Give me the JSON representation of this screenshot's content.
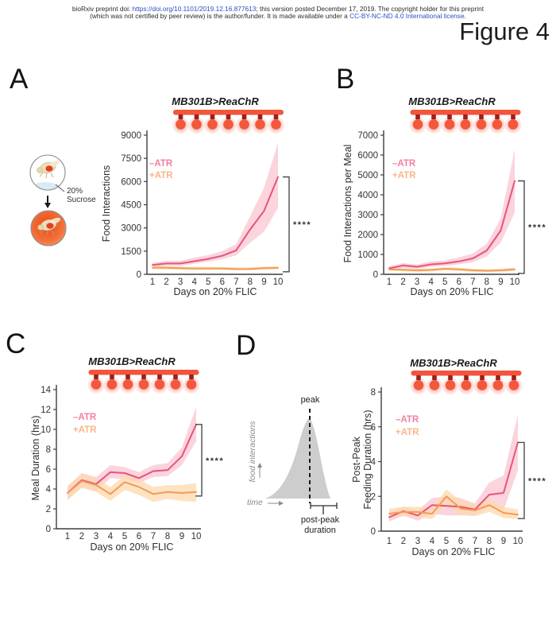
{
  "header": {
    "line1_pre": "bioRxiv preprint doi: ",
    "line1_link": "https://doi.org/10.1101/2019.12.16.877613",
    "line1_post": "; this version posted December 17, 2019. The copyright holder for this preprint",
    "line2_pre": "(which was not certified by peer review) is the author/funder. It is made available under a ",
    "line2_link": "CC-BY-NC-ND 4.0 International license",
    "line2_post": ".",
    "figure_label": "Figure 4"
  },
  "panels": [
    {
      "letter": "A",
      "title": "MB301B>ReaChR",
      "legend": {
        "neg": "–ATR",
        "pos": "+ATR"
      },
      "ylabel": "Food Interactions",
      "xlabel": "Days on 20% FLIC",
      "significance": "****"
    },
    {
      "letter": "B",
      "title": "MB301B>ReaChR",
      "legend": {
        "neg": "–ATR",
        "pos": "+ATR"
      },
      "ylabel": "Food Interactions per Meal",
      "xlabel": "Days on 20% FLIC",
      "significance": "****"
    },
    {
      "letter": "C",
      "title": "MB301B>ReaChR",
      "legend": {
        "neg": "–ATR",
        "pos": "+ATR"
      },
      "ylabel": "Meal Duration (hrs)",
      "xlabel": "Days on 20% FLIC",
      "significance": "****"
    },
    {
      "letter": "D",
      "title": "MB301B>ReaChR",
      "legend": {
        "neg": "–ATR",
        "pos": "+ATR"
      },
      "ylabel_line1": "Post-Peak",
      "ylabel_line2": "Feeding Duration (hrs)",
      "xlabel": "Days on 20% FLIC",
      "significance": "****"
    }
  ],
  "sucrose_inset": {
    "label_line1": "20%",
    "label_line2": "Sucrose"
  },
  "peak_inset": {
    "peak_label": "peak",
    "ylabel": "food interactions",
    "xlabel": "time",
    "bracket_label_line1": "post-peak",
    "bracket_label_line2": "duration"
  },
  "colors": {
    "pink_line": "#e9537b",
    "pink_band": "#f9c6d1",
    "pink_legend": "#f180a0",
    "orange_line": "#f39a57",
    "orange_band": "#fcd9ad",
    "orange_legend": "#f9b68b",
    "bulb_red": "#f2553c",
    "connector_red": "#9b2016",
    "axis": "#3d3d3d",
    "link_blue": "#2d50c0",
    "gray_curve": "#cdcdcd"
  },
  "chart_data": [
    {
      "id": "A",
      "type": "line",
      "title": "MB301B>ReaChR",
      "xlabel": "Days on 20% FLIC",
      "ylabel": "Food Interactions",
      "x": [
        1,
        2,
        3,
        4,
        5,
        6,
        7,
        8,
        9,
        10
      ],
      "ylim": [
        0,
        9000
      ],
      "yticks": [
        0,
        1500,
        3000,
        4500,
        6000,
        7500,
        9000
      ],
      "grid": false,
      "legend_position": "upper-left",
      "significance": "****",
      "series": [
        {
          "name": "–ATR",
          "color": "#e9537b",
          "band_color": "#f9c6d1",
          "values": [
            600,
            700,
            700,
            850,
            1000,
            1200,
            1550,
            2900,
            4100,
            6300
          ],
          "lower": [
            460,
            560,
            560,
            680,
            820,
            980,
            1230,
            2050,
            2750,
            4300
          ],
          "upper": [
            740,
            880,
            880,
            1080,
            1250,
            1500,
            1950,
            3750,
            5600,
            8500
          ]
        },
        {
          "name": "+ATR",
          "color": "#f39a57",
          "band_color": "#fcd9ad",
          "values": [
            430,
            420,
            400,
            380,
            380,
            380,
            340,
            350,
            400,
            420
          ],
          "lower": [
            330,
            320,
            300,
            280,
            280,
            280,
            250,
            260,
            300,
            320
          ],
          "upper": [
            530,
            520,
            500,
            480,
            480,
            480,
            440,
            450,
            500,
            520
          ]
        }
      ]
    },
    {
      "id": "B",
      "type": "line",
      "title": "MB301B>ReaChR",
      "xlabel": "Days on 20% FLIC",
      "ylabel": "Food Interactions per Meal",
      "x": [
        1,
        2,
        3,
        4,
        5,
        6,
        7,
        8,
        9,
        10
      ],
      "ylim": [
        0,
        7000
      ],
      "yticks": [
        0,
        1000,
        2000,
        3000,
        4000,
        5000,
        6000,
        7000
      ],
      "grid": false,
      "legend_position": "upper-left",
      "significance": "****",
      "series": [
        {
          "name": "–ATR",
          "color": "#e9537b",
          "band_color": "#f9c6d1",
          "values": [
            300,
            450,
            380,
            500,
            550,
            650,
            800,
            1200,
            2200,
            4700
          ],
          "lower": [
            210,
            330,
            280,
            380,
            420,
            500,
            610,
            900,
            1600,
            3100
          ],
          "upper": [
            400,
            570,
            490,
            650,
            700,
            850,
            1050,
            1550,
            2800,
            6300
          ]
        },
        {
          "name": "+ATR",
          "color": "#f39a57",
          "band_color": "#fcd9ad",
          "values": [
            250,
            230,
            200,
            220,
            280,
            250,
            200,
            180,
            200,
            250
          ],
          "lower": [
            170,
            150,
            130,
            150,
            200,
            170,
            130,
            110,
            130,
            170
          ],
          "upper": [
            330,
            310,
            280,
            300,
            360,
            330,
            280,
            260,
            280,
            340
          ]
        }
      ]
    },
    {
      "id": "C",
      "type": "line",
      "title": "MB301B>ReaChR",
      "xlabel": "Days on 20% FLIC",
      "ylabel": "Meal Duration (hrs)",
      "x": [
        1,
        2,
        3,
        4,
        5,
        6,
        7,
        8,
        9,
        10
      ],
      "ylim": [
        0,
        14
      ],
      "yticks": [
        0,
        2,
        4,
        6,
        8,
        10,
        12,
        14
      ],
      "grid": false,
      "legend_position": "upper-left",
      "significance": "****",
      "series": [
        {
          "name": "–ATR",
          "color": "#e9537b",
          "band_color": "#f9c6d1",
          "values": [
            3.6,
            4.9,
            4.5,
            5.7,
            5.6,
            5.1,
            5.8,
            5.9,
            7.3,
            10.5
          ],
          "lower": [
            2.9,
            4.2,
            3.8,
            5.1,
            5.0,
            4.6,
            5.2,
            5.3,
            6.4,
            8.8
          ],
          "upper": [
            4.3,
            5.6,
            5.2,
            6.4,
            6.2,
            5.7,
            6.4,
            6.6,
            8.2,
            12.3
          ]
        },
        {
          "name": "+ATR",
          "color": "#f39a57",
          "band_color": "#fcd9ad",
          "values": [
            3.6,
            4.8,
            4.4,
            3.5,
            4.7,
            4.2,
            3.5,
            3.7,
            3.6,
            3.7
          ],
          "lower": [
            2.9,
            4.1,
            3.7,
            2.8,
            3.9,
            3.4,
            2.7,
            3.0,
            2.8,
            2.7
          ],
          "upper": [
            4.3,
            5.5,
            5.1,
            4.2,
            5.4,
            5.0,
            4.2,
            4.4,
            4.4,
            4.6
          ]
        }
      ]
    },
    {
      "id": "D",
      "type": "line",
      "title": "MB301B>ReaChR",
      "xlabel": "Days on 20% FLIC",
      "ylabel": "Post-Peak Feeding Duration (hrs)",
      "x": [
        1,
        2,
        3,
        4,
        5,
        6,
        7,
        8,
        9,
        10
      ],
      "ylim": [
        0,
        8
      ],
      "yticks": [
        0,
        2,
        4,
        6,
        8
      ],
      "grid": false,
      "legend_position": "upper-left",
      "significance": "****",
      "series": [
        {
          "name": "–ATR",
          "color": "#e9537b",
          "band_color": "#f9c6d1",
          "values": [
            0.8,
            1.15,
            0.9,
            1.5,
            1.45,
            1.4,
            1.25,
            2.1,
            2.2,
            5.1
          ],
          "lower": [
            0.55,
            0.9,
            0.6,
            1.0,
            0.9,
            0.9,
            0.9,
            1.4,
            1.2,
            3.5
          ],
          "upper": [
            1.1,
            1.4,
            1.2,
            1.9,
            2.0,
            1.9,
            1.6,
            2.8,
            3.2,
            6.7
          ]
        },
        {
          "name": "+ATR",
          "color": "#f39a57",
          "band_color": "#fcd9ad",
          "values": [
            1.0,
            1.1,
            1.1,
            1.0,
            2.0,
            1.3,
            1.2,
            1.5,
            1.05,
            0.95
          ],
          "lower": [
            0.75,
            0.85,
            0.8,
            0.7,
            1.5,
            0.95,
            0.85,
            1.1,
            0.75,
            0.7
          ],
          "upper": [
            1.3,
            1.4,
            1.4,
            1.35,
            2.4,
            1.75,
            1.55,
            1.85,
            1.4,
            1.25
          ]
        }
      ]
    }
  ]
}
